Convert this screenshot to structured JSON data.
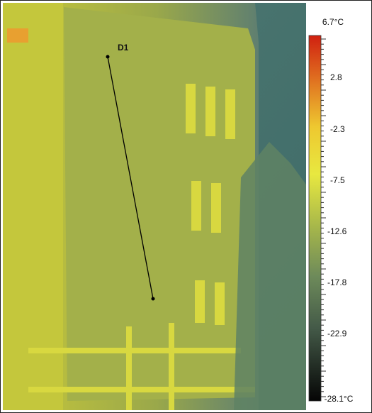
{
  "measurement": {
    "label": "D1"
  },
  "scale": {
    "labels": [
      "6.7°C",
      "2.8",
      "-2.3",
      "-7.5",
      "-12.6",
      "-17.8",
      "-22.9",
      "-28.1°C"
    ]
  }
}
